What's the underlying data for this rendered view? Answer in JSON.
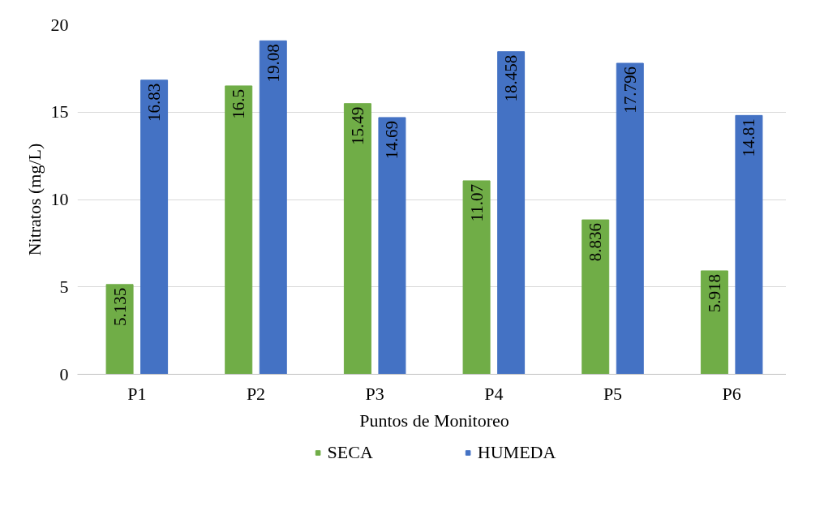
{
  "chart_data": {
    "type": "bar",
    "xlabel": "Puntos de Monitoreo",
    "ylabel": "Nitratos (mg/L)",
    "categories": [
      "P1",
      "P2",
      "P3",
      "P4",
      "P5",
      "P6"
    ],
    "series": [
      {
        "name": "SECA",
        "color": "#70ad47",
        "values": [
          5.135,
          16.5,
          15.49,
          11.07,
          8.836,
          5.918
        ]
      },
      {
        "name": "HUMEDA",
        "color": "#4472c4",
        "values": [
          16.83,
          19.08,
          14.69,
          18.458,
          17.796,
          14.81
        ]
      }
    ],
    "ylim": [
      0,
      20
    ],
    "yticks": [
      0,
      5,
      10,
      15,
      20
    ],
    "grid": "y",
    "legend": "bottom",
    "data_labels": true
  }
}
